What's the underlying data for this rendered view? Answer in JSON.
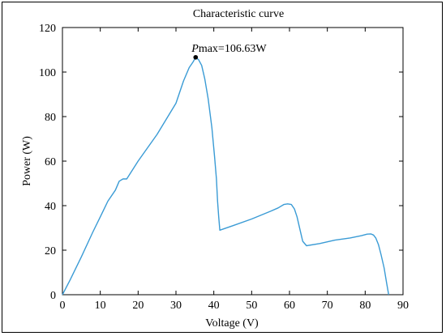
{
  "chart_data": {
    "type": "line",
    "title": "Characteristic curve",
    "xlabel": "Voltage (V)",
    "ylabel": "Power (W)",
    "xlim": [
      0,
      90
    ],
    "ylim": [
      0,
      120
    ],
    "xticks": [
      0,
      10,
      20,
      30,
      40,
      50,
      60,
      70,
      80,
      90
    ],
    "yticks": [
      0,
      20,
      40,
      60,
      80,
      100,
      120
    ],
    "grid": false,
    "line_color": "#3a9bd5",
    "series": [
      {
        "x": [
          0,
          2,
          5,
          8,
          10,
          12,
          14,
          15,
          16,
          17,
          20,
          25,
          30,
          32,
          33.5,
          34.5,
          35.2,
          36.0,
          36.8,
          37.6,
          38.5,
          39.5,
          40.2,
          40.7,
          41.0,
          41.3,
          41.6,
          45,
          50,
          55,
          57,
          58.5,
          59.5,
          60.5,
          61.3,
          62.0,
          62.8,
          63.5,
          64.5,
          68,
          72,
          76,
          79,
          80.5,
          81.5,
          82.2,
          82.8,
          83.5,
          84.2,
          85.0,
          85.7,
          86.2
        ],
        "y": [
          0,
          6.5,
          17,
          28,
          35,
          42,
          47,
          51,
          52,
          52,
          60,
          72,
          86,
          96,
          102,
          104.5,
          106.63,
          105.5,
          103,
          97,
          88,
          75,
          62,
          52,
          42,
          35,
          29,
          31,
          34,
          37.5,
          39,
          40.5,
          40.8,
          40.5,
          38.5,
          35,
          29,
          24,
          22,
          23,
          24.5,
          25.5,
          26.5,
          27.2,
          27.3,
          26.8,
          25.5,
          22.5,
          18,
          12,
          5,
          0
        ]
      }
    ],
    "annotations": [
      {
        "italic_prefix": "P",
        "text": "max=106.63W",
        "x": 35.2,
        "y": 106.63
      }
    ]
  }
}
